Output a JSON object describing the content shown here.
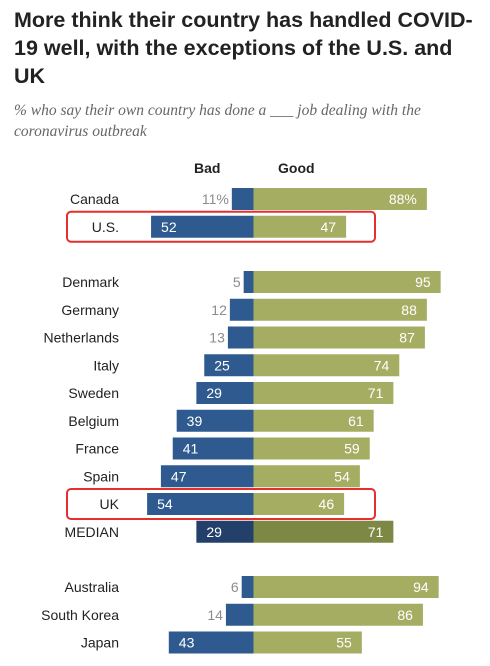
{
  "title": "More think their country has handled COVID-19 well, with the exceptions of the U.S. and UK",
  "subtitle": "% who say their own country has done a ___ job dealing with the coronavirus outbreak",
  "colors": {
    "bad": "#2f5a8f",
    "good": "#a5ad63",
    "median_bad": "#22406a",
    "median_good": "#7e8845",
    "highlight": "#e3302f",
    "label_outside": "#8c8c8c",
    "label_inside": "#ffffff"
  },
  "chart_data": {
    "type": "bar",
    "orientation": "horizontal",
    "stacked": "diverging",
    "series": [
      {
        "name": "Bad",
        "values": [
          11,
          52,
          5,
          12,
          13,
          25,
          29,
          39,
          41,
          47,
          54,
          29,
          6,
          14,
          43
        ]
      },
      {
        "name": "Good",
        "values": [
          88,
          47,
          95,
          88,
          87,
          74,
          71,
          61,
          59,
          54,
          46,
          71,
          94,
          86,
          55
        ]
      }
    ],
    "categories": [
      "Canada",
      "U.S.",
      "Denmark",
      "Germany",
      "Netherlands",
      "Italy",
      "Sweden",
      "Belgium",
      "France",
      "Spain",
      "UK",
      "MEDIAN",
      "Australia",
      "South Korea",
      "Japan"
    ],
    "groups": [
      [
        "Canada",
        "U.S."
      ],
      [
        "Denmark",
        "Germany",
        "Netherlands",
        "Italy",
        "Sweden",
        "Belgium",
        "France",
        "Spain",
        "UK",
        "MEDIAN"
      ],
      [
        "Australia",
        "South Korea",
        "Japan"
      ]
    ],
    "highlighted": [
      "U.S.",
      "UK"
    ],
    "first_label_suffix": "%",
    "xlim": [
      -100,
      100
    ]
  }
}
